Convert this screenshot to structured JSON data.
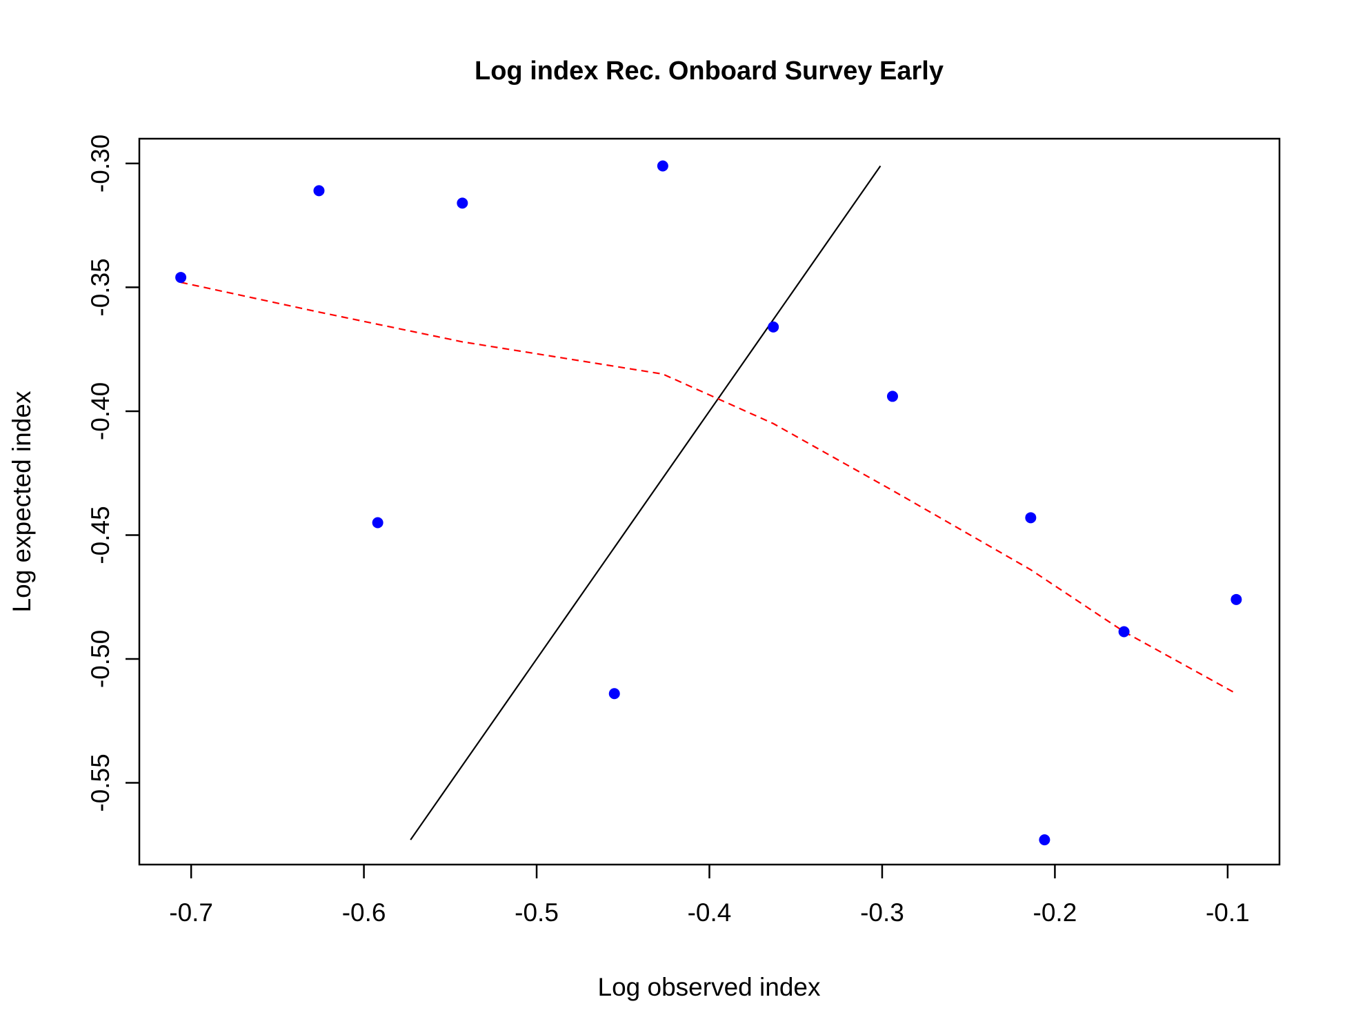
{
  "chart_data": {
    "type": "scatter",
    "title": "Log index Rec. Onboard Survey Early",
    "xlabel": "Log observed index",
    "ylabel": "Log expected index",
    "xlim": [
      -0.73,
      -0.07
    ],
    "ylim": [
      -0.583,
      -0.29
    ],
    "x_ticks": [
      -0.7,
      -0.6,
      -0.5,
      -0.4,
      -0.3,
      -0.2,
      -0.1
    ],
    "x_tick_labels": [
      "-0.7",
      "-0.6",
      "-0.5",
      "-0.4",
      "-0.3",
      "-0.2",
      "-0.1"
    ],
    "y_ticks": [
      -0.3,
      -0.35,
      -0.4,
      -0.45,
      -0.5,
      -0.55
    ],
    "y_tick_labels": [
      "-0.30",
      "-0.35",
      "-0.40",
      "-0.45",
      "-0.50",
      "-0.55"
    ],
    "grid": false,
    "points": {
      "color": "#0000ff",
      "x": [
        -0.706,
        -0.626,
        -0.592,
        -0.543,
        -0.455,
        -0.427,
        -0.363,
        -0.294,
        -0.214,
        -0.206,
        -0.16,
        -0.095
      ],
      "y": [
        -0.346,
        -0.311,
        -0.445,
        -0.316,
        -0.514,
        -0.301,
        -0.366,
        -0.394,
        -0.443,
        -0.573,
        -0.489,
        -0.476
      ]
    },
    "identity_line": {
      "color": "#000000",
      "x": [
        -0.573,
        -0.301
      ],
      "y": [
        -0.573,
        -0.301
      ]
    },
    "smooth_line": {
      "color": "#ff0000",
      "style": "dashed",
      "x": [
        -0.706,
        -0.626,
        -0.543,
        -0.427,
        -0.363,
        -0.294,
        -0.214,
        -0.16,
        -0.095
      ],
      "y": [
        -0.348,
        -0.36,
        -0.372,
        -0.385,
        -0.405,
        -0.432,
        -0.464,
        -0.489,
        -0.514
      ]
    }
  }
}
